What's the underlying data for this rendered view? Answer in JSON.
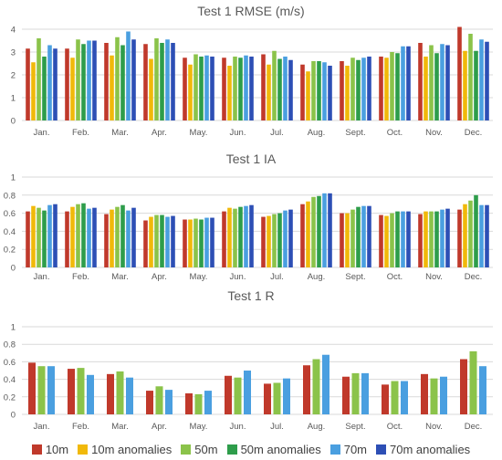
{
  "chart_data": [
    {
      "type": "bar",
      "title": "Test 1 RMSE (m/s)",
      "categories": [
        "Jan.",
        "Feb.",
        "Mar.",
        "Apr.",
        "May.",
        "Jun.",
        "Jul.",
        "Aug.",
        "Sept.",
        "Oct.",
        "Nov.",
        "Dec."
      ],
      "ylim": [
        0,
        4
      ],
      "yticks": [
        0,
        1,
        2,
        3,
        4
      ],
      "series": [
        {
          "name": "10m",
          "values": [
            3.15,
            3.15,
            3.4,
            3.35,
            2.75,
            2.75,
            2.9,
            2.45,
            2.6,
            2.8,
            3.4,
            4.1
          ]
        },
        {
          "name": "10m anomalies",
          "values": [
            2.55,
            2.75,
            2.85,
            2.7,
            2.45,
            2.4,
            2.45,
            2.15,
            2.4,
            2.75,
            2.8,
            3.05
          ]
        },
        {
          "name": "50m",
          "values": [
            3.6,
            3.55,
            3.65,
            3.6,
            2.9,
            2.8,
            3.05,
            2.6,
            2.75,
            3.0,
            3.3,
            3.8
          ]
        },
        {
          "name": "50m anomalies",
          "values": [
            2.8,
            3.35,
            3.3,
            3.4,
            2.8,
            2.75,
            2.7,
            2.6,
            2.65,
            2.95,
            2.95,
            3.05
          ]
        },
        {
          "name": "70m",
          "values": [
            3.3,
            3.5,
            3.9,
            3.55,
            2.85,
            2.85,
            2.8,
            2.55,
            2.75,
            3.25,
            3.35,
            3.55
          ]
        },
        {
          "name": "70m anomalies",
          "values": [
            3.15,
            3.5,
            3.55,
            3.4,
            2.8,
            2.8,
            2.65,
            2.4,
            2.8,
            3.25,
            3.3,
            3.45
          ]
        }
      ]
    },
    {
      "type": "bar",
      "title": "Test 1 IA",
      "categories": [
        "Jan.",
        "Feb.",
        "Mar.",
        "Apr.",
        "May.",
        "Jun.",
        "Jul.",
        "Aug.",
        "Sept.",
        "Oct.",
        "Nov.",
        "Dec."
      ],
      "ylim": [
        0,
        1
      ],
      "yticks": [
        0,
        0.2,
        0.4,
        0.6,
        0.8,
        1
      ],
      "series": [
        {
          "name": "10m",
          "values": [
            0.62,
            0.62,
            0.59,
            0.52,
            0.53,
            0.62,
            0.56,
            0.7,
            0.6,
            0.58,
            0.59,
            0.64
          ]
        },
        {
          "name": "10m anomalies",
          "values": [
            0.68,
            0.67,
            0.64,
            0.56,
            0.53,
            0.66,
            0.57,
            0.73,
            0.6,
            0.57,
            0.62,
            0.7
          ]
        },
        {
          "name": "50m",
          "values": [
            0.66,
            0.7,
            0.67,
            0.58,
            0.54,
            0.65,
            0.59,
            0.78,
            0.64,
            0.6,
            0.62,
            0.74
          ]
        },
        {
          "name": "50m anomalies",
          "values": [
            0.63,
            0.71,
            0.69,
            0.58,
            0.53,
            0.67,
            0.6,
            0.79,
            0.67,
            0.62,
            0.62,
            0.8
          ]
        },
        {
          "name": "70m",
          "values": [
            0.69,
            0.65,
            0.63,
            0.56,
            0.55,
            0.68,
            0.63,
            0.82,
            0.68,
            0.62,
            0.64,
            0.69
          ]
        },
        {
          "name": "70m anomalies",
          "values": [
            0.7,
            0.66,
            0.66,
            0.57,
            0.55,
            0.69,
            0.64,
            0.82,
            0.68,
            0.62,
            0.65,
            0.69
          ]
        }
      ]
    },
    {
      "type": "bar",
      "title": "Test 1 R",
      "categories": [
        "Jan.",
        "Feb.",
        "Mar.",
        "Apr.",
        "May.",
        "Jun.",
        "Jul.",
        "Aug.",
        "Sept.",
        "Oct.",
        "Nov.",
        "Dec."
      ],
      "ylim": [
        0,
        1
      ],
      "yticks": [
        0,
        0.2,
        0.4,
        0.6,
        0.8,
        1
      ],
      "series": [
        {
          "name": "10m",
          "values": [
            0.59,
            0.52,
            0.46,
            0.27,
            0.24,
            0.44,
            0.35,
            0.56,
            0.43,
            0.34,
            0.46,
            0.63
          ]
        },
        {
          "name": "50m",
          "values": [
            0.55,
            0.53,
            0.49,
            0.32,
            0.23,
            0.42,
            0.36,
            0.63,
            0.47,
            0.38,
            0.41,
            0.72
          ]
        },
        {
          "name": "70m",
          "values": [
            0.55,
            0.45,
            0.42,
            0.28,
            0.27,
            0.5,
            0.41,
            0.68,
            0.47,
            0.38,
            0.43,
            0.55
          ]
        }
      ]
    }
  ],
  "legend": [
    {
      "name": "10m",
      "color": "#c0392b"
    },
    {
      "name": "10m anomalies",
      "color": "#f1b90a"
    },
    {
      "name": "50m",
      "color": "#8bc34a"
    },
    {
      "name": "50m anomalies",
      "color": "#2e9d4b"
    },
    {
      "name": "70m",
      "color": "#4a9fe0"
    },
    {
      "name": "70m anomalies",
      "color": "#2d4fb5"
    }
  ],
  "colors": {
    "10m": "#c0392b",
    "10m anomalies": "#f1b90a",
    "50m": "#8bc34a",
    "50m anomalies": "#2e9d4b",
    "70m": "#4a9fe0",
    "70m anomalies": "#2d4fb5",
    "gridline": "#d9d9d9",
    "axis_text": "#595959"
  }
}
